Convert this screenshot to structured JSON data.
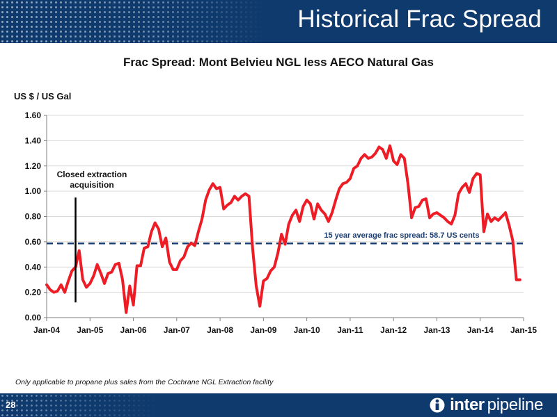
{
  "slide": {
    "title": "Historical Frac Spread",
    "page_number": "28",
    "footnote": "Only applicable to propane plus sales from the Cochrane NGL Extraction facility",
    "logo": {
      "word1": "inter",
      "word2": "pipeline",
      "icon": "interpipeline-logo-mark"
    },
    "colors": {
      "band": "#0f3a6e",
      "line": "#ee1c25",
      "average": "#1c3f73"
    }
  },
  "chart_data": {
    "type": "line",
    "title": "Frac Spread: Mont Belvieu NGL less AECO Natural Gas",
    "ylabel": "US $ / US Gal",
    "xlabel": "",
    "ylim": [
      0,
      1.6
    ],
    "yticks": [
      0.0,
      0.2,
      0.4,
      0.6,
      0.8,
      1.0,
      1.2,
      1.4,
      1.6
    ],
    "ytick_labels": [
      "0.00",
      "0.20",
      "0.40",
      "0.60",
      "0.80",
      "1.00",
      "1.20",
      "1.40",
      "1.60"
    ],
    "x_start": "Jan-04",
    "x_end": "Jan-15",
    "xtick_labels": [
      "Jan-04",
      "Jan-05",
      "Jan-06",
      "Jan-07",
      "Jan-08",
      "Jan-09",
      "Jan-10",
      "Jan-11",
      "Jan-12",
      "Jan-13",
      "Jan-14",
      "Jan-15"
    ],
    "grid": true,
    "frequency": "monthly",
    "series": [
      {
        "values": [
          0.26,
          0.22,
          0.2,
          0.21,
          0.26,
          0.2,
          0.29,
          0.37,
          0.4,
          0.53,
          0.3,
          0.24,
          0.27,
          0.33,
          0.42,
          0.35,
          0.27,
          0.35,
          0.36,
          0.42,
          0.43,
          0.3,
          0.04,
          0.25,
          0.1,
          0.41,
          0.41,
          0.55,
          0.56,
          0.68,
          0.75,
          0.7,
          0.56,
          0.63,
          0.44,
          0.38,
          0.38,
          0.45,
          0.48,
          0.56,
          0.59,
          0.57,
          0.68,
          0.78,
          0.93,
          1.01,
          1.06,
          1.02,
          1.03,
          0.86,
          0.89,
          0.91,
          0.96,
          0.93,
          0.96,
          0.98,
          0.96,
          0.55,
          0.25,
          0.09,
          0.29,
          0.31,
          0.37,
          0.4,
          0.51,
          0.66,
          0.58,
          0.74,
          0.81,
          0.85,
          0.76,
          0.88,
          0.93,
          0.9,
          0.78,
          0.9,
          0.85,
          0.82,
          0.76,
          0.83,
          0.93,
          1.02,
          1.06,
          1.07,
          1.1,
          1.18,
          1.2,
          1.26,
          1.29,
          1.26,
          1.27,
          1.3,
          1.35,
          1.33,
          1.26,
          1.36,
          1.24,
          1.21,
          1.29,
          1.26,
          1.06,
          0.79,
          0.87,
          0.88,
          0.93,
          0.94,
          0.79,
          0.82,
          0.83,
          0.81,
          0.79,
          0.76,
          0.74,
          0.81,
          0.98,
          1.03,
          1.06,
          0.99,
          1.1,
          1.14,
          1.13,
          0.68,
          0.82,
          0.76,
          0.79,
          0.77,
          0.8,
          0.83,
          0.73,
          0.61,
          0.3,
          0.3
        ]
      }
    ],
    "reference_line": {
      "value": 0.587,
      "label": "15 year average frac spread: 58.7 US cents",
      "style": "dashed"
    },
    "annotation": {
      "lines": [
        "Closed extraction",
        "acquisition"
      ],
      "x_date": "Sep-04",
      "y_from": 0.12,
      "y_to": 0.95
    }
  }
}
